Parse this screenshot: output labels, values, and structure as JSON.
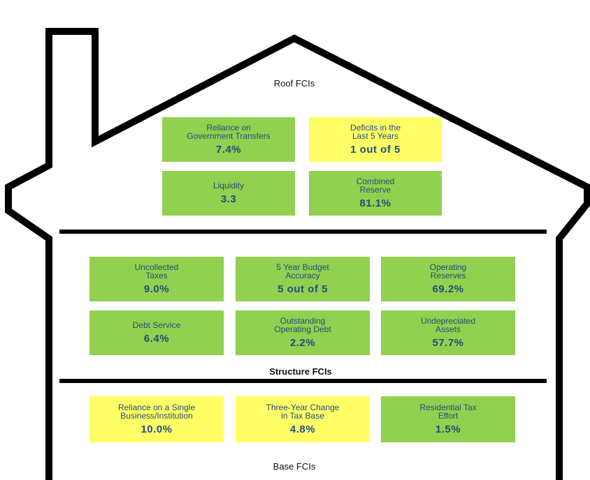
{
  "sections": [
    {
      "title": "Roof FCIs",
      "boxes": [
        {
          "label": [
            "Reliance on",
            "Government Transfers"
          ],
          "value": "7.4%",
          "color": "#92d050"
        },
        {
          "label": [
            "Deficits in the",
            "Last 5 Years"
          ],
          "value": "1 out of 5",
          "color": "#ffff66"
        },
        {
          "label": [
            "Liquidity"
          ],
          "value": "3.3",
          "color": "#92d050"
        },
        {
          "label": [
            "Combined",
            "Reserve"
          ],
          "value": "81.1%",
          "color": "#92d050"
        }
      ]
    },
    {
      "title": "Structure FCIs",
      "boxes": [
        {
          "label": [
            "Uncollected",
            "Taxes"
          ],
          "value": "9.0%",
          "color": "#92d050"
        },
        {
          "label": [
            "5 Year Budget",
            "Accuracy"
          ],
          "value": "5 out of 5",
          "color": "#92d050"
        },
        {
          "label": [
            "Operating",
            "Reserves"
          ],
          "value": "69.2%",
          "color": "#92d050"
        },
        {
          "label": [
            "Debt Service"
          ],
          "value": "6.4%",
          "color": "#92d050"
        },
        {
          "label": [
            "Outstanding",
            "Operating Debt"
          ],
          "value": "2.2%",
          "color": "#92d050"
        },
        {
          "label": [
            "Undepreciated",
            "Assets"
          ],
          "value": "57.7%",
          "color": "#92d050"
        }
      ]
    },
    {
      "title": "Base FCIs",
      "boxes": [
        {
          "label": [
            "Reliance on a Single",
            "Business/Institution"
          ],
          "value": "10.0%",
          "color": "#ffff66"
        },
        {
          "label": [
            "Three-Year Change",
            "in Tax Base"
          ],
          "value": "4.8%",
          "color": "#ffff66"
        },
        {
          "label": [
            "Residential Tax",
            "Effort"
          ],
          "value": "1.5%",
          "color": "#92d050"
        }
      ]
    }
  ]
}
